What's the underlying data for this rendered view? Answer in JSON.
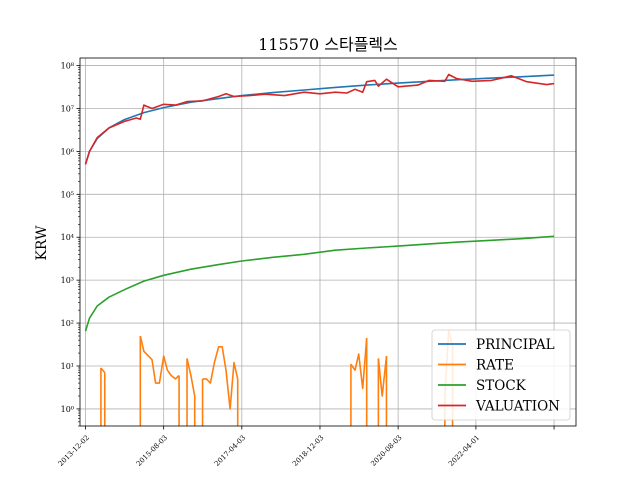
{
  "chart_data": {
    "type": "line",
    "title": "115570 스타플렉스",
    "xlabel": "",
    "ylabel": "KRW",
    "y_scale": "log",
    "ylim": [
      0.4,
      150000000
    ],
    "x_range": [
      "2013-10-20",
      "2024-05-20"
    ],
    "grid": true,
    "legend_position": "bottom-right",
    "x_ticks": [
      {
        "date": "2013-12-02",
        "label": "2013-12-02"
      },
      {
        "date": "2015-08-03",
        "label": "2015-08-03"
      },
      {
        "date": "2017-04-03",
        "label": "2017-04-03"
      },
      {
        "date": "2018-12-03",
        "label": "2018-12-03"
      },
      {
        "date": "2020-08-03",
        "label": "2020-08-03"
      },
      {
        "date": "2022-04-01",
        "label": "2022-04-01"
      },
      {
        "date": "2023-12-01",
        "label": ""
      }
    ],
    "y_ticks": [
      {
        "value": 1,
        "label": "10⁰"
      },
      {
        "value": 10,
        "label": "10¹"
      },
      {
        "value": 100,
        "label": "10²"
      },
      {
        "value": 1000,
        "label": "10³"
      },
      {
        "value": 10000,
        "label": "10⁴"
      },
      {
        "value": 100000,
        "label": "10⁵"
      },
      {
        "value": 1000000,
        "label": "10⁶"
      },
      {
        "value": 10000000,
        "label": "10⁷"
      },
      {
        "value": 100000000,
        "label": "10⁸"
      }
    ],
    "series": [
      {
        "name": "PRINCIPAL",
        "color": "#1f77b4",
        "points": [
          [
            "2013-12-02",
            500000
          ],
          [
            "2014-01-02",
            1000000
          ],
          [
            "2014-03-03",
            2000000
          ],
          [
            "2014-06-02",
            3500000
          ],
          [
            "2014-10-01",
            5500000
          ],
          [
            "2015-03-02",
            8000000
          ],
          [
            "2015-08-03",
            10500000
          ],
          [
            "2016-03-02",
            14000000
          ],
          [
            "2016-10-04",
            17000000
          ],
          [
            "2017-04-03",
            20000000
          ],
          [
            "2017-12-01",
            23500000
          ],
          [
            "2018-08-01",
            27000000
          ],
          [
            "2019-04-01",
            31000000
          ],
          [
            "2019-12-02",
            35000000
          ],
          [
            "2020-08-03",
            39000000
          ],
          [
            "2021-04-01",
            43000000
          ],
          [
            "2021-12-01",
            47000000
          ],
          [
            "2022-08-01",
            51000000
          ],
          [
            "2023-04-03",
            55000000
          ],
          [
            "2023-12-01",
            60000000
          ]
        ]
      },
      {
        "name": "RATE",
        "color": "#ff7f0e",
        "segments": [
          [
            [
              "2014-04-01",
              9
            ],
            [
              "2014-05-01",
              7
            ]
          ],
          [
            [
              "2015-02-02",
              50
            ],
            [
              "2015-03-02",
              22
            ],
            [
              "2015-05-04",
              14
            ],
            [
              "2015-06-01",
              4
            ],
            [
              "2015-07-01",
              4
            ],
            [
              "2015-08-03",
              17
            ],
            [
              "2015-09-01",
              8
            ],
            [
              "2015-10-01",
              6
            ],
            [
              "2015-11-02",
              5
            ],
            [
              "2015-12-01",
              6
            ]
          ],
          [
            [
              "2016-02-01",
              15
            ],
            [
              "2016-03-02",
              6
            ],
            [
              "2016-04-01",
              2
            ]
          ],
          [
            [
              "2016-06-01",
              5
            ],
            [
              "2016-07-01",
              5
            ],
            [
              "2016-08-01",
              4
            ],
            [
              "2016-09-01",
              12
            ],
            [
              "2016-10-04",
              28
            ],
            [
              "2016-11-01",
              28
            ],
            [
              "2016-12-01",
              8
            ],
            [
              "2017-01-02",
              1
            ],
            [
              "2017-02-01",
              12
            ],
            [
              "2017-03-02",
              5
            ]
          ],
          [
            [
              "2019-08-01",
              11
            ],
            [
              "2019-09-02",
              8
            ],
            [
              "2019-10-01",
              19
            ],
            [
              "2019-11-01",
              3
            ],
            [
              "2019-12-02",
              45
            ]
          ],
          [
            [
              "2020-03-02",
              15
            ],
            [
              "2020-04-01",
              2
            ],
            [
              "2020-05-04",
              17
            ]
          ],
          [
            [
              "2021-08-02",
              2
            ],
            [
              "2021-09-01",
              65
            ],
            [
              "2021-10-01",
              30
            ]
          ]
        ],
        "drops": [
          "2014-06-02",
          "2015-02-01",
          "2016-01-04",
          "2016-05-02",
          "2017-03-15",
          "2019-07-15",
          "2020-01-15",
          "2020-02-15",
          "2020-06-01",
          "2021-07-15",
          "2021-11-01"
        ]
      },
      {
        "name": "STOCK",
        "color": "#2ca02c",
        "points": [
          [
            "2013-12-02",
            65
          ],
          [
            "2014-01-02",
            130
          ],
          [
            "2014-03-03",
            250
          ],
          [
            "2014-06-02",
            400
          ],
          [
            "2014-10-01",
            600
          ],
          [
            "2015-03-02",
            950
          ],
          [
            "2015-08-03",
            1300
          ],
          [
            "2016-03-02",
            1800
          ],
          [
            "2016-10-04",
            2300
          ],
          [
            "2017-04-03",
            2800
          ],
          [
            "2017-12-01",
            3400
          ],
          [
            "2018-08-01",
            4000
          ],
          [
            "2019-04-01",
            5000
          ],
          [
            "2019-12-02",
            5600
          ],
          [
            "2020-08-03",
            6200
          ],
          [
            "2021-04-01",
            7000
          ],
          [
            "2021-12-01",
            7800
          ],
          [
            "2022-08-01",
            8500
          ],
          [
            "2023-04-03",
            9300
          ],
          [
            "2023-12-01",
            10500
          ]
        ]
      },
      {
        "name": "VALUATION",
        "color": "#d62728",
        "points": [
          [
            "2013-12-02",
            500000
          ],
          [
            "2014-01-02",
            1000000
          ],
          [
            "2014-03-03",
            2100000
          ],
          [
            "2014-06-02",
            3500000
          ],
          [
            "2014-10-01",
            5000000
          ],
          [
            "2015-01-02",
            6000000
          ],
          [
            "2015-02-02",
            5600000
          ],
          [
            "2015-03-02",
            12000000
          ],
          [
            "2015-05-04",
            10000000
          ],
          [
            "2015-08-03",
            12500000
          ],
          [
            "2015-11-02",
            12000000
          ],
          [
            "2016-02-01",
            14500000
          ],
          [
            "2016-06-01",
            15000000
          ],
          [
            "2016-10-04",
            19000000
          ],
          [
            "2016-12-01",
            22000000
          ],
          [
            "2017-02-01",
            19000000
          ],
          [
            "2017-06-01",
            20000000
          ],
          [
            "2017-10-02",
            21500000
          ],
          [
            "2018-03-02",
            20000000
          ],
          [
            "2018-08-01",
            24000000
          ],
          [
            "2018-12-03",
            22000000
          ],
          [
            "2019-04-01",
            24000000
          ],
          [
            "2019-07-01",
            23000000
          ],
          [
            "2019-09-02",
            28000000
          ],
          [
            "2019-11-01",
            24000000
          ],
          [
            "2019-12-02",
            42000000
          ],
          [
            "2020-02-03",
            45000000
          ],
          [
            "2020-03-02",
            33000000
          ],
          [
            "2020-05-04",
            48000000
          ],
          [
            "2020-08-03",
            32000000
          ],
          [
            "2021-01-04",
            35000000
          ],
          [
            "2021-04-01",
            45000000
          ],
          [
            "2021-08-02",
            43000000
          ],
          [
            "2021-09-01",
            62000000
          ],
          [
            "2021-11-01",
            50000000
          ],
          [
            "2022-03-02",
            43000000
          ],
          [
            "2022-08-01",
            45000000
          ],
          [
            "2022-11-01",
            52000000
          ],
          [
            "2023-01-02",
            58000000
          ],
          [
            "2023-05-02",
            42000000
          ],
          [
            "2023-10-04",
            36000000
          ],
          [
            "2023-12-01",
            38000000
          ]
        ]
      }
    ]
  }
}
